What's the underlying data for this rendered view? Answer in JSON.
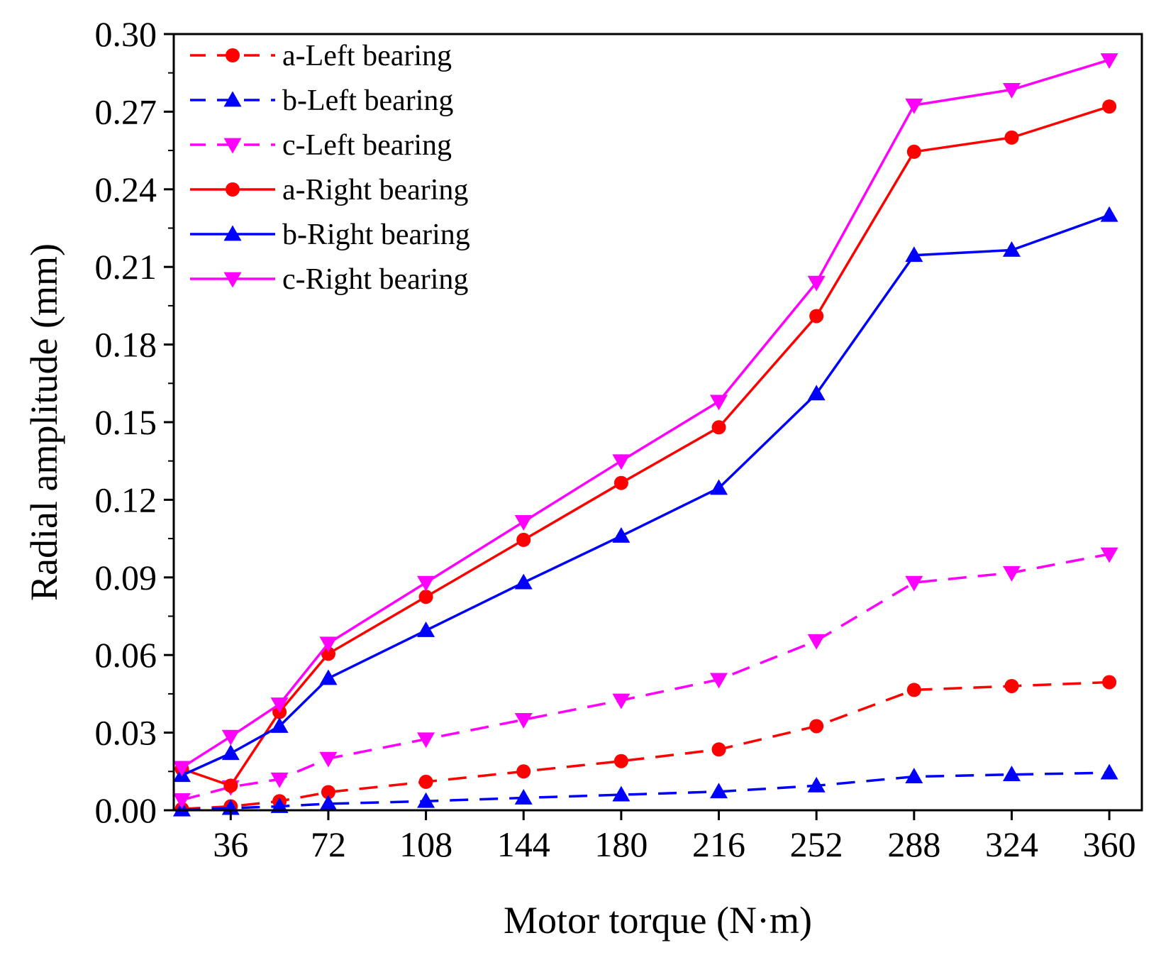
{
  "chart_data": {
    "type": "line",
    "title": "",
    "xlabel": "Motor torque (N·m)",
    "ylabel": "Radial amplitude (mm)",
    "x": [
      18,
      36,
      54,
      72,
      108,
      144,
      180,
      216,
      252,
      288,
      324,
      360
    ],
    "xticks": [
      36,
      72,
      108,
      144,
      180,
      216,
      252,
      288,
      324,
      360
    ],
    "xtick_labels": [
      "36",
      "72",
      "108",
      "144",
      "180",
      "216",
      "252",
      "288",
      "324",
      "360"
    ],
    "xlim": [
      15,
      372
    ],
    "ylim": [
      0,
      0.3
    ],
    "yticks": [
      0,
      0.03,
      0.06,
      0.09,
      0.12,
      0.15,
      0.18,
      0.21,
      0.24,
      0.27,
      0.3
    ],
    "ytick_labels": [
      "0.00",
      "0.03",
      "0.06",
      "0.09",
      "0.12",
      "0.15",
      "0.18",
      "0.21",
      "0.24",
      "0.27",
      "0.30"
    ],
    "grid": false,
    "legend_position": "top-left",
    "series": [
      {
        "name": "a-Left bearing",
        "color": "#ff0000",
        "dash": "dashed",
        "marker": "circle",
        "values": [
          0.0005,
          0.0015,
          0.0035,
          0.007,
          0.011,
          0.015,
          0.019,
          0.0235,
          0.0325,
          0.0465,
          0.048,
          0.0495
        ]
      },
      {
        "name": "b-Left bearing",
        "color": "#0000ff",
        "dash": "dashed",
        "marker": "triangle-up",
        "values": [
          0.0002,
          0.0008,
          0.0015,
          0.0025,
          0.0035,
          0.0048,
          0.006,
          0.0072,
          0.0095,
          0.013,
          0.0138,
          0.0145
        ]
      },
      {
        "name": "c-Left bearing",
        "color": "#ff00ff",
        "dash": "dashed",
        "marker": "triangle-down",
        "values": [
          0.004,
          0.009,
          0.012,
          0.02,
          0.0275,
          0.035,
          0.0425,
          0.0505,
          0.0655,
          0.088,
          0.0918,
          0.099
        ]
      },
      {
        "name": "a-Right bearing",
        "color": "#ff0000",
        "dash": "solid",
        "marker": "circle",
        "values": [
          0.016,
          0.0095,
          0.038,
          0.0605,
          0.0825,
          0.1045,
          0.1265,
          0.148,
          0.191,
          0.2545,
          0.26,
          0.272
        ]
      },
      {
        "name": "b-Right bearing",
        "color": "#0000ff",
        "dash": "solid",
        "marker": "triangle-up",
        "values": [
          0.0135,
          0.022,
          0.0325,
          0.051,
          0.0695,
          0.088,
          0.106,
          0.1245,
          0.161,
          0.2145,
          0.2165,
          0.23
        ]
      },
      {
        "name": "c-Right bearing",
        "color": "#ff00ff",
        "dash": "solid",
        "marker": "triangle-down",
        "values": [
          0.0165,
          0.0285,
          0.041,
          0.0645,
          0.088,
          0.1115,
          0.135,
          0.158,
          0.204,
          0.2725,
          0.2785,
          0.29
        ]
      }
    ]
  }
}
